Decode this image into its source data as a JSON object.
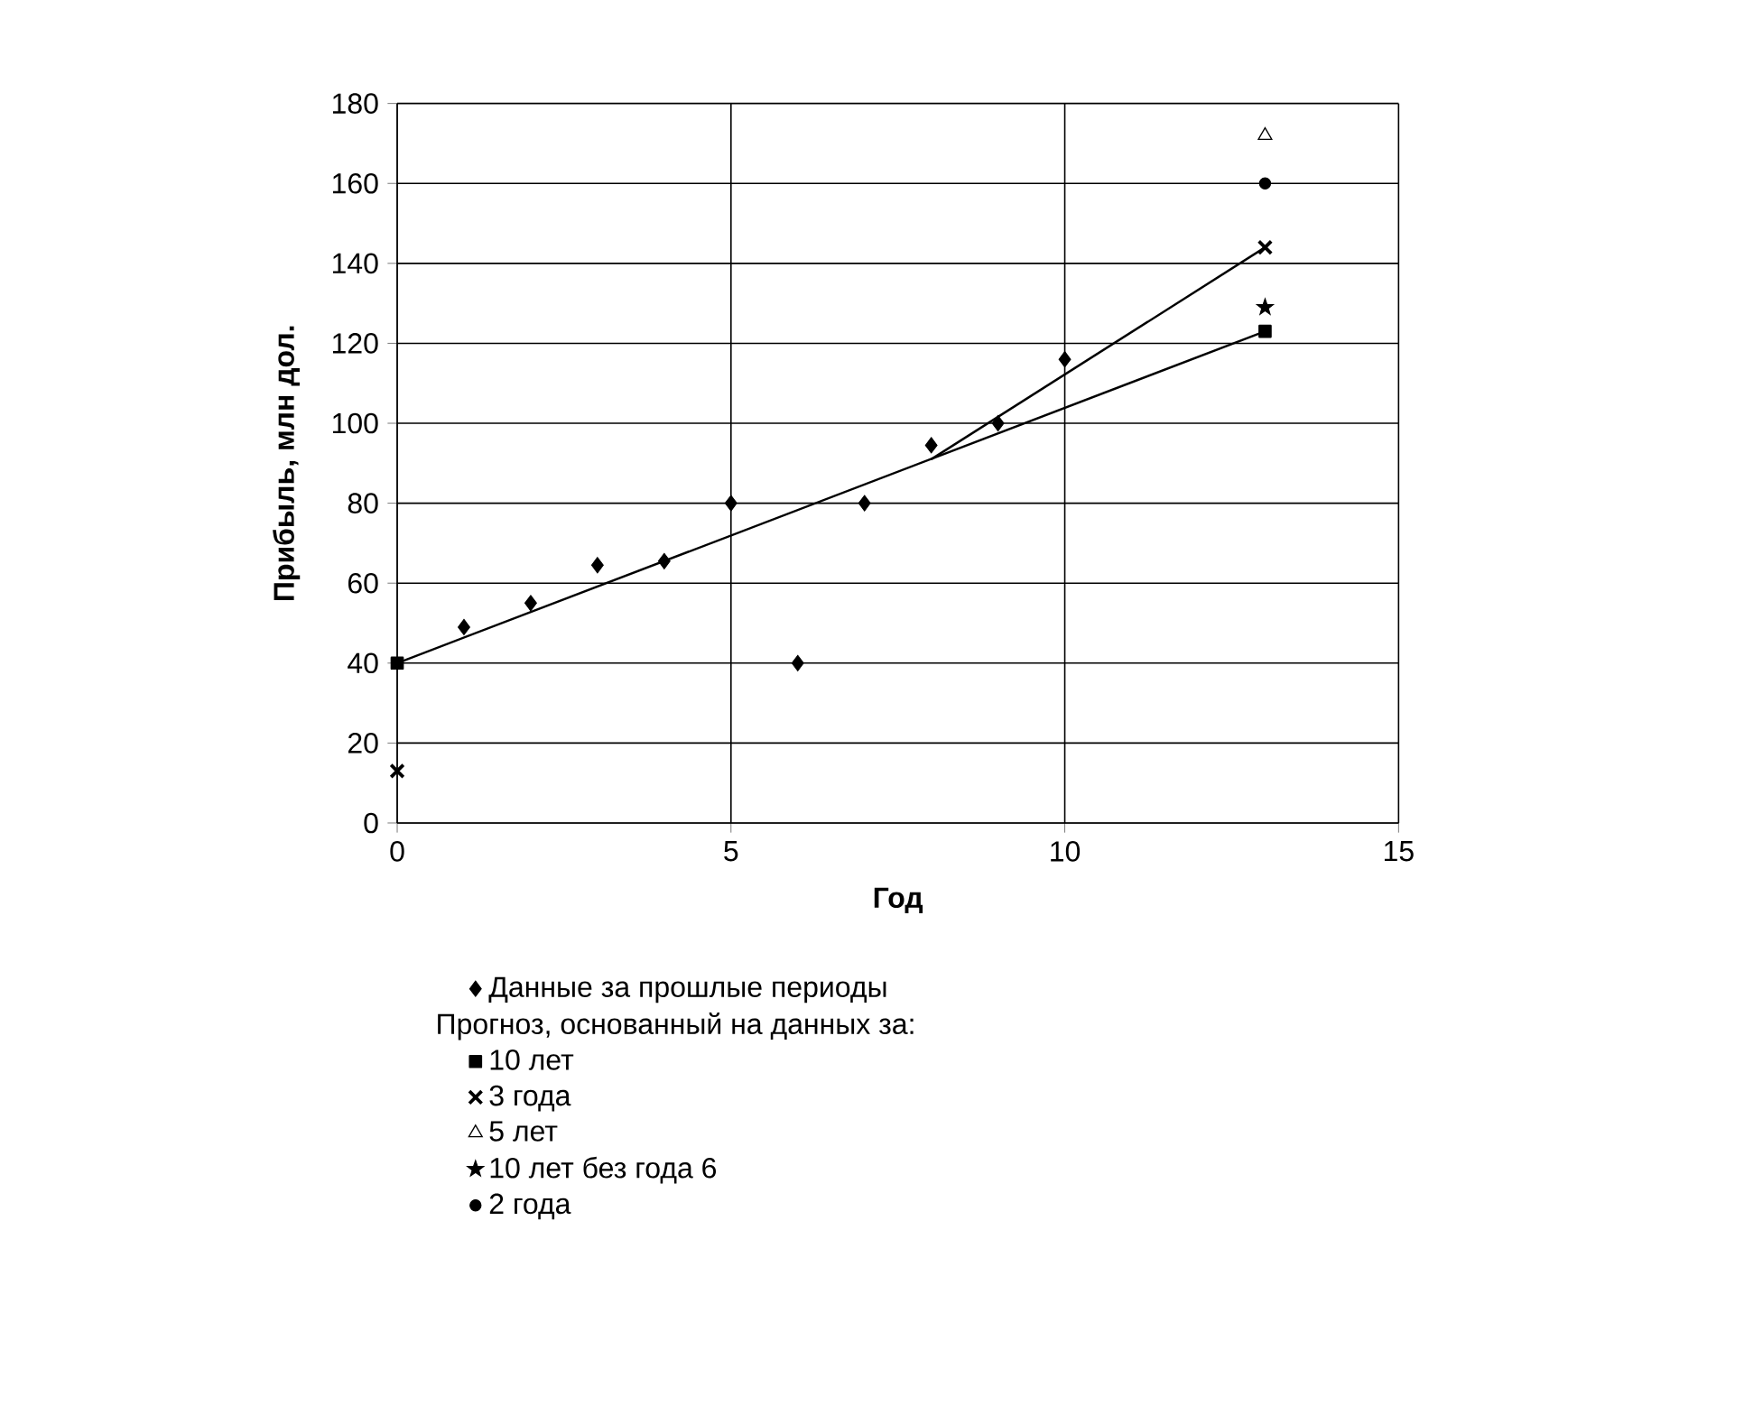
{
  "chart_data": {
    "type": "scatter",
    "xlabel": "Год",
    "ylabel": "Прибыль, млн дол.",
    "legend_title": "Прогноз, основанный на данных за:",
    "xlim": [
      0,
      15
    ],
    "ylim": [
      0,
      180
    ],
    "xticks": [
      0,
      5,
      10,
      15
    ],
    "yticks": [
      0,
      20,
      40,
      60,
      80,
      100,
      120,
      140,
      160,
      180
    ],
    "grid": true,
    "legend": "bottom",
    "series": [
      {
        "name": "Данные за прошлые периоды",
        "color": "#000000",
        "marker": "diamond",
        "x": [
          1,
          2,
          3,
          4,
          5,
          6,
          7,
          8,
          9,
          10
        ],
        "values": [
          49,
          55,
          64.5,
          65.5,
          80,
          40,
          80,
          94.5,
          100,
          116
        ]
      },
      {
        "name": "10 лет",
        "type": "line",
        "color": "#000000",
        "marker": "square",
        "line_style": "solid",
        "x": [
          0,
          13
        ],
        "values": [
          40,
          123
        ]
      },
      {
        "name": "3 года",
        "color": "#000000",
        "marker": "cross",
        "x": [
          0,
          13
        ],
        "values": [
          13,
          144
        ]
      },
      {
        "name": "5 лет",
        "color": "#000000",
        "marker": "triangle",
        "x": [
          13
        ],
        "values": [
          172
        ]
      },
      {
        "name": "10 лет без года 6",
        "color": "#000000",
        "marker": "star",
        "x": [
          13
        ],
        "values": [
          129
        ]
      },
      {
        "name": "2 года",
        "color": "#000000",
        "marker": "circle",
        "x": [
          13
        ],
        "values": [
          160
        ]
      },
      {
        "type": "line",
        "color": "#000000",
        "marker": "none",
        "line_style": "solid",
        "x": [
          8,
          13
        ],
        "values": [
          91,
          144
        ]
      }
    ]
  }
}
